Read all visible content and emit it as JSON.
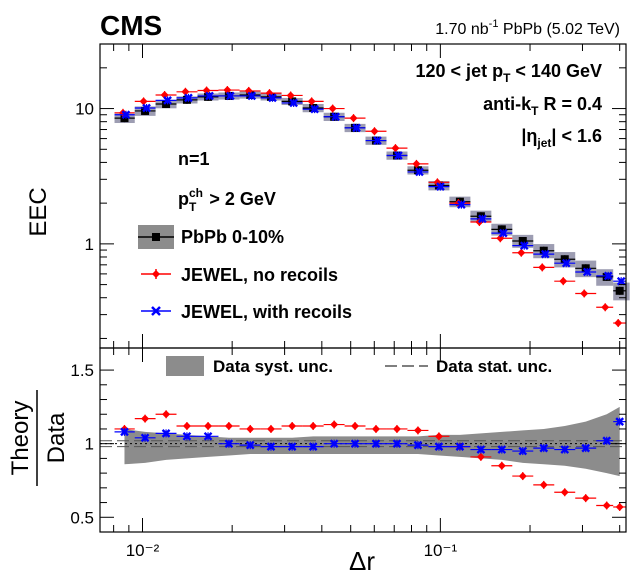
{
  "header": {
    "experiment": "CMS",
    "lumi": "1.70",
    "lumi_unit": "nb",
    "lumi_exp": "-1",
    "system": "PbPb (5.02 TeV)"
  },
  "annotations": {
    "pt_range_prefix": "120 < jet p",
    "pt_range_sub": "T",
    "pt_range_suffix": " < 140 GeV",
    "algo_prefix": "anti-k",
    "algo_sub": "T",
    "algo_suffix": " R = 0.4",
    "eta_prefix": "|η",
    "eta_sub": "jet",
    "eta_suffix": "| < 1.6",
    "n_label": "n=1",
    "ch_prefix": "p",
    "ch_sub": "T",
    "ch_sup": "ch",
    "ch_suffix": " > 2 GeV"
  },
  "legend_top": [
    "PbPb 0-10%",
    "JEWEL, no recoils",
    "JEWEL, with recoils"
  ],
  "legend_bottom": [
    "Data syst. unc.",
    "Data stat. unc."
  ],
  "colors": {
    "data": "#000000",
    "no_recoils": "#ff0000",
    "with_recoils": "#0000ff",
    "band": "#8c8c8c",
    "band_top": "#8c8ca5"
  },
  "chart_data": [
    {
      "type": "scatter",
      "title": "EEC",
      "xlabel": "Δr",
      "ylabel": "EEC",
      "xscale": "log",
      "yscale": "log",
      "xlim": [
        0.0072,
        0.42
      ],
      "ylim": [
        0.17,
        30
      ],
      "x_ticks": [
        "10⁻²",
        "10⁻¹"
      ],
      "y_ticks": [
        "1",
        "10"
      ],
      "x": [
        0.0087,
        0.0102,
        0.012,
        0.0141,
        0.0166,
        0.0195,
        0.023,
        0.027,
        0.0318,
        0.0374,
        0.044,
        0.0517,
        0.0608,
        0.0715,
        0.0841,
        0.0989,
        0.1163,
        0.1368,
        0.1608,
        0.1891,
        0.2224,
        0.2616,
        0.3076,
        0.3618,
        0.4
      ],
      "series": [
        {
          "name": "PbPb 0-10%",
          "values": [
            8.5,
            9.6,
            10.8,
            11.6,
            12.2,
            12.4,
            12.6,
            12.2,
            11.3,
            10.1,
            8.7,
            7.2,
            5.8,
            4.5,
            3.5,
            2.7,
            2.05,
            1.6,
            1.28,
            1.05,
            0.89,
            0.77,
            0.66,
            0.57,
            0.45
          ],
          "syst": [
            0.08,
            0.08,
            0.07,
            0.06,
            0.06,
            0.06,
            0.06,
            0.06,
            0.06,
            0.07,
            0.07,
            0.07,
            0.07,
            0.07,
            0.07,
            0.08,
            0.09,
            0.1,
            0.1,
            0.11,
            0.12,
            0.13,
            0.14,
            0.14,
            0.15
          ]
        },
        {
          "name": "JEWEL, no recoils",
          "values": [
            9.3,
            11.3,
            12.6,
            13.3,
            13.6,
            13.7,
            13.5,
            13.0,
            12.5,
            11.3,
            10.0,
            8.5,
            6.8,
            5.1,
            3.9,
            2.85,
            2.0,
            1.45,
            1.1,
            0.86,
            0.67,
            0.53,
            0.43,
            0.34,
            0.26
          ]
        },
        {
          "name": "JEWEL, with recoils",
          "values": [
            9.0,
            10.1,
            11.5,
            12.0,
            12.4,
            12.4,
            12.4,
            12.0,
            11.0,
            9.9,
            8.7,
            7.2,
            5.8,
            4.5,
            3.4,
            2.65,
            1.95,
            1.53,
            1.2,
            0.97,
            0.84,
            0.72,
            0.62,
            0.58,
            0.53
          ]
        }
      ]
    },
    {
      "type": "scatter",
      "title": "Theory/Data ratio",
      "xlabel": "Δr",
      "ylabel": "Theory / Data",
      "ylabel_numerator": "Theory",
      "ylabel_denominator": "Data",
      "xscale": "log",
      "xlim": [
        0.0072,
        0.42
      ],
      "ylim": [
        0.4,
        1.65
      ],
      "y_ticks": [
        "0.5",
        "1",
        "1.5"
      ],
      "x": [
        0.0087,
        0.0102,
        0.012,
        0.0141,
        0.0166,
        0.0195,
        0.023,
        0.027,
        0.0318,
        0.0374,
        0.044,
        0.0517,
        0.0608,
        0.0715,
        0.0841,
        0.0989,
        0.1163,
        0.1368,
        0.1608,
        0.1891,
        0.2224,
        0.2616,
        0.3076,
        0.3618,
        0.4
      ],
      "series": [
        {
          "name": "JEWEL, no recoils",
          "values": [
            1.1,
            1.17,
            1.2,
            1.12,
            1.12,
            1.12,
            1.1,
            1.1,
            1.12,
            1.12,
            1.13,
            1.12,
            1.1,
            1.1,
            1.09,
            1.05,
            0.98,
            0.91,
            0.85,
            0.78,
            0.72,
            0.67,
            0.63,
            0.58,
            0.57
          ]
        },
        {
          "name": "JEWEL, with recoils",
          "values": [
            1.08,
            1.04,
            1.07,
            1.05,
            1.05,
            1.0,
            0.99,
            0.98,
            0.98,
            0.98,
            1.0,
            1.0,
            1.0,
            1.0,
            0.99,
            0.98,
            0.98,
            0.96,
            0.96,
            0.95,
            0.97,
            0.96,
            0.97,
            1.02,
            1.15
          ]
        }
      ],
      "data_syst_band": {
        "lower": [
          0.86,
          0.87,
          0.89,
          0.9,
          0.91,
          0.92,
          0.93,
          0.93,
          0.93,
          0.93,
          0.93,
          0.93,
          0.93,
          0.93,
          0.93,
          0.92,
          0.91,
          0.9,
          0.89,
          0.87,
          0.86,
          0.85,
          0.83,
          0.8,
          0.78
        ],
        "upper": [
          1.1,
          1.08,
          1.07,
          1.06,
          1.05,
          1.04,
          1.04,
          1.04,
          1.04,
          1.05,
          1.05,
          1.05,
          1.05,
          1.05,
          1.05,
          1.06,
          1.06,
          1.07,
          1.08,
          1.09,
          1.1,
          1.12,
          1.15,
          1.2,
          1.25
        ]
      },
      "data_stat_unc": 0.02
    }
  ]
}
